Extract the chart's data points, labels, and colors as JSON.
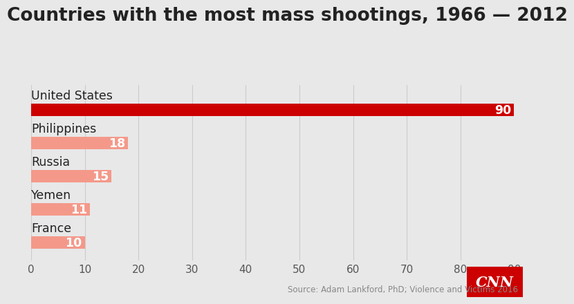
{
  "title": "Countries with the most mass shootings, 1966 — 2012",
  "categories": [
    "United States",
    "Philippines",
    "Russia",
    "Yemen",
    "France"
  ],
  "values": [
    90,
    18,
    15,
    11,
    10
  ],
  "bar_colors": [
    "#cc0000",
    "#f4998a",
    "#f4998a",
    "#f4998a",
    "#f4998a"
  ],
  "background_color": "#e8e8e8",
  "title_fontsize": 19,
  "label_fontsize": 12.5,
  "tick_fontsize": 11,
  "xlim": [
    0,
    90
  ],
  "xticks": [
    0,
    10,
    20,
    30,
    40,
    50,
    60,
    70,
    80,
    90
  ],
  "source_text": "Source: Adam Lankford, PhD; Violence and Victims 2016",
  "cnn_logo_color": "#cc0000",
  "value_label_color": "#ffffff"
}
